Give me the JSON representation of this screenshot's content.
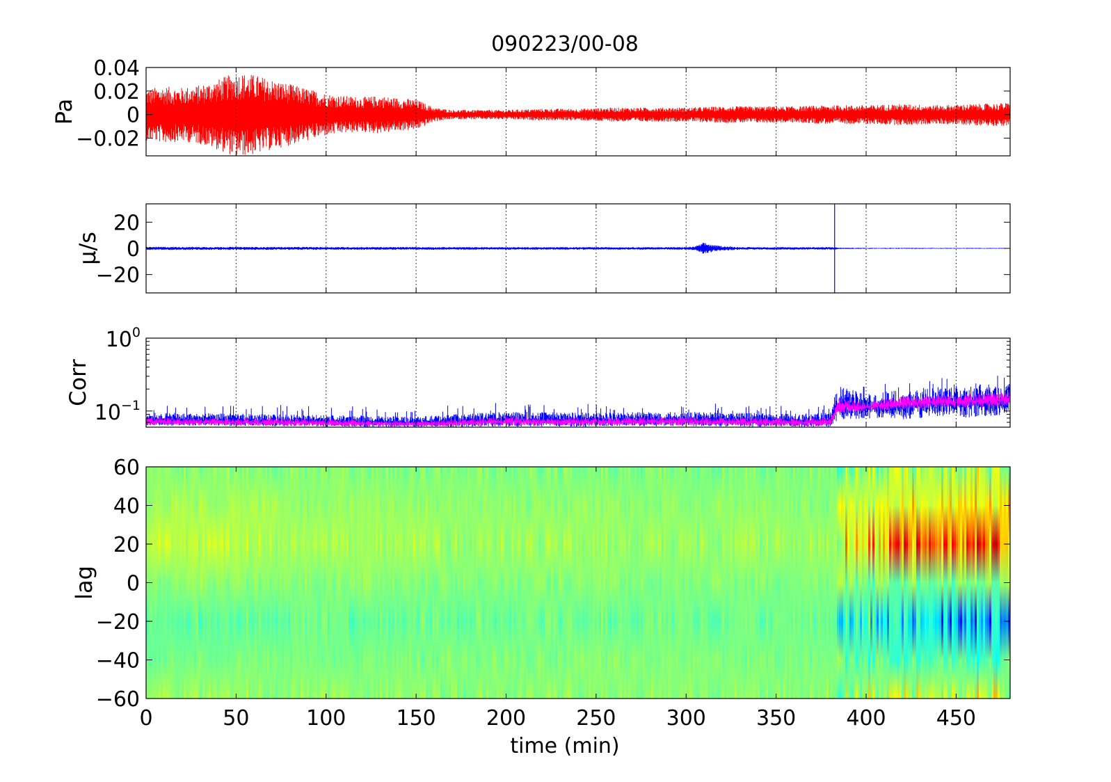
{
  "figure": {
    "title": "090223/00-08",
    "xlabel": "time (min)",
    "xlim": [
      0,
      480
    ],
    "xticks": [
      0,
      50,
      100,
      150,
      200,
      250,
      300,
      350,
      400,
      450
    ]
  },
  "chart_data": [
    {
      "type": "line",
      "panel": "pressure",
      "ylabel": "Pa",
      "ylim": [
        -0.035,
        0.04
      ],
      "yticks": [
        0.04,
        0.02,
        0,
        -0.02
      ],
      "ytick_labels": [
        "0.04",
        "0.02",
        "0",
        "−0.02"
      ],
      "grid": true,
      "series": [
        {
          "color": "#ff0000",
          "envelope_time_min": [
            0,
            10,
            20,
            30,
            40,
            50,
            60,
            70,
            80,
            90,
            100,
            110,
            120,
            130,
            140,
            150,
            160,
            170,
            180,
            200,
            220,
            240,
            260,
            280,
            300,
            320,
            340,
            360,
            380,
            400,
            420,
            440,
            460,
            480
          ],
          "envelope_amplitude_pa": [
            0.022,
            0.024,
            0.023,
            0.025,
            0.03,
            0.036,
            0.034,
            0.03,
            0.026,
            0.022,
            0.018,
            0.016,
            0.015,
            0.016,
            0.014,
            0.013,
            0.006,
            0.004,
            0.004,
            0.004,
            0.005,
            0.005,
            0.006,
            0.006,
            0.006,
            0.007,
            0.007,
            0.007,
            0.008,
            0.008,
            0.009,
            0.008,
            0.009,
            0.01
          ]
        }
      ]
    },
    {
      "type": "line",
      "panel": "velocity",
      "ylabel": "μ/s",
      "ylim": [
        -34,
        34
      ],
      "yticks": [
        20,
        0,
        -20
      ],
      "ytick_labels": [
        "20",
        "0",
        "−20"
      ],
      "grid": true,
      "series": [
        {
          "color": "#0000ff",
          "envelope_time_min": [
            0,
            100,
            200,
            300,
            305,
            310,
            315,
            320,
            330,
            380,
            382,
            385,
            400,
            480
          ],
          "envelope_amplitude": [
            1.2,
            1.1,
            1.0,
            1.0,
            1.5,
            4.5,
            2.5,
            1.8,
            1.0,
            1.0,
            1.0,
            0.5,
            0.4,
            0.3
          ],
          "spikes_time_min": [
            382.5
          ],
          "spike_range": [
            -34,
            34
          ]
        }
      ]
    },
    {
      "type": "line",
      "panel": "correlation",
      "ylabel": "Corr",
      "yscale": "log",
      "ylim": [
        0.06,
        1
      ],
      "yticks": [
        1,
        0.1
      ],
      "ytick_labels_base": [
        "10",
        "10"
      ],
      "ytick_labels_exp": [
        "0",
        "−1"
      ],
      "grid": true,
      "series": [
        {
          "color": "#0000ff",
          "time_min": [
            0,
            50,
            100,
            150,
            200,
            250,
            300,
            350,
            380,
            385,
            400,
            420,
            440,
            460,
            480
          ],
          "upper": [
            0.095,
            0.092,
            0.088,
            0.084,
            0.098,
            0.095,
            0.098,
            0.092,
            0.095,
            0.22,
            0.17,
            0.2,
            0.22,
            0.23,
            0.24
          ],
          "lower": [
            0.063,
            0.062,
            0.061,
            0.06,
            0.061,
            0.061,
            0.062,
            0.06,
            0.06,
            0.075,
            0.08,
            0.075,
            0.085,
            0.08,
            0.09
          ]
        },
        {
          "color": "#ff00ff",
          "time_min": [
            0,
            50,
            100,
            150,
            200,
            250,
            300,
            350,
            380,
            385,
            400,
            420,
            440,
            460,
            480
          ],
          "upper": [
            0.082,
            0.08,
            0.077,
            0.072,
            0.083,
            0.081,
            0.083,
            0.079,
            0.081,
            0.15,
            0.13,
            0.16,
            0.17,
            0.175,
            0.18
          ],
          "lower": [
            0.064,
            0.063,
            0.062,
            0.061,
            0.063,
            0.063,
            0.064,
            0.062,
            0.062,
            0.095,
            0.1,
            0.105,
            0.11,
            0.11,
            0.12
          ]
        }
      ]
    },
    {
      "type": "heatmap",
      "panel": "lag",
      "ylabel": "lag",
      "ylim": [
        -60,
        60
      ],
      "yticks": [
        60,
        40,
        20,
        0,
        -20,
        -40,
        -60
      ],
      "ytick_labels": [
        "60",
        "40",
        "20",
        "0",
        "−20",
        "−40",
        "−60"
      ],
      "colormap": "jet",
      "colormap_stops": [
        "#00007f",
        "#0000ff",
        "#00ffff",
        "#7fff7f",
        "#ffff00",
        "#ff0000",
        "#7f0000"
      ],
      "color_range": [
        -0.6,
        0.6
      ],
      "time_min": [
        0,
        30,
        60,
        90,
        120,
        150,
        180,
        210,
        240,
        270,
        300,
        330,
        360,
        383,
        385,
        400,
        420,
        440,
        460,
        480
      ],
      "lag_values": [
        60,
        40,
        20,
        0,
        -20,
        -40,
        -60
      ],
      "values": [
        [
          0.0,
          0.02,
          0.01,
          0.0,
          0.02,
          0.0,
          0.01,
          0.0,
          0.01,
          0.0,
          0.0,
          0.01,
          0.0,
          0.0,
          0.0,
          0.03,
          0.05,
          0.04,
          0.06,
          0.05
        ],
        [
          0.05,
          0.06,
          0.05,
          0.03,
          0.04,
          0.03,
          0.02,
          0.02,
          0.03,
          0.02,
          0.02,
          0.03,
          0.02,
          0.02,
          0.1,
          0.12,
          0.18,
          0.16,
          0.2,
          0.18
        ],
        [
          0.1,
          0.11,
          0.09,
          0.06,
          0.07,
          0.06,
          0.05,
          0.05,
          0.06,
          0.05,
          0.05,
          0.06,
          0.05,
          0.05,
          0.18,
          0.2,
          0.32,
          0.3,
          0.36,
          0.3
        ],
        [
          0.02,
          0.03,
          0.02,
          0.01,
          0.02,
          0.01,
          0.0,
          0.01,
          0.01,
          0.0,
          0.0,
          0.01,
          0.0,
          0.0,
          0.02,
          0.0,
          0.0,
          -0.02,
          0.0,
          0.0
        ],
        [
          -0.06,
          -0.05,
          -0.04,
          -0.03,
          -0.03,
          -0.03,
          -0.02,
          -0.02,
          -0.02,
          -0.02,
          -0.02,
          -0.02,
          -0.02,
          -0.02,
          -0.12,
          -0.14,
          -0.2,
          -0.22,
          -0.28,
          -0.22
        ],
        [
          -0.02,
          -0.01,
          -0.01,
          0.0,
          -0.01,
          0.0,
          0.0,
          0.0,
          0.0,
          0.0,
          0.0,
          0.0,
          0.0,
          0.0,
          -0.06,
          -0.05,
          -0.08,
          -0.06,
          -0.1,
          -0.08
        ],
        [
          0.04,
          0.05,
          0.04,
          0.03,
          0.04,
          0.03,
          0.03,
          0.02,
          0.03,
          0.02,
          0.02,
          0.03,
          0.02,
          0.02,
          0.04,
          0.06,
          0.1,
          0.08,
          0.12,
          0.1
        ]
      ]
    }
  ]
}
